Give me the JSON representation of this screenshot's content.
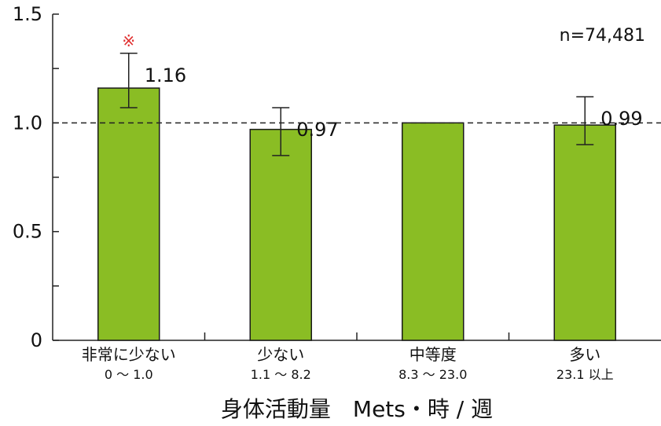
{
  "chart_data": {
    "type": "bar",
    "categories": [
      "非常に少ない",
      "少ない",
      "中等度",
      "多い"
    ],
    "category_ranges": [
      "0 〜 1.0",
      "1.1 〜 8.2",
      "8.3 〜 23.0",
      "23.1 以上"
    ],
    "values": [
      1.16,
      0.97,
      1.0,
      0.99
    ],
    "value_labels": [
      "1.16",
      "0.97",
      "",
      "0.99"
    ],
    "error_low": [
      1.07,
      0.85,
      null,
      0.9
    ],
    "error_high": [
      1.32,
      1.07,
      null,
      1.12
    ],
    "significance": [
      "※",
      "",
      "",
      ""
    ],
    "reference_line": 1.0,
    "ylim": [
      0,
      1.5
    ],
    "yticks": [
      0,
      0.25,
      0.5,
      0.75,
      1.0,
      1.25,
      1.5
    ],
    "ytick_labels": [
      "0",
      "",
      "0.5",
      "",
      "1.0",
      "",
      "1.5"
    ],
    "xlabel": "身体活動量　Mets・時 / 週",
    "ylabel": "",
    "title": "",
    "annotation": "n=74,481",
    "grid": false,
    "colors": {
      "bar": "#8ABD24",
      "bar_edge": "#1a1a1a",
      "significance": "#E03030",
      "axis": "#222222"
    }
  }
}
